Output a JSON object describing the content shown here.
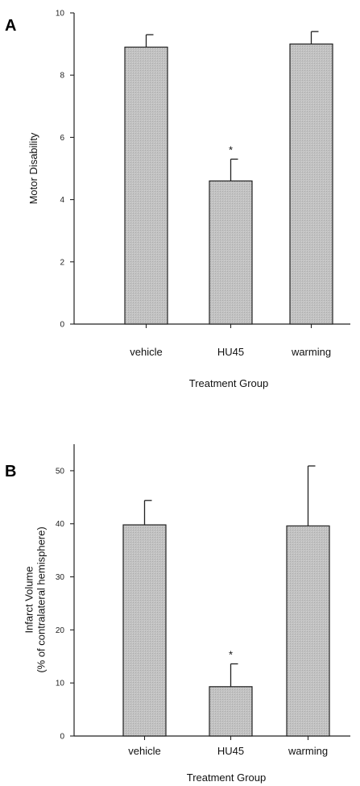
{
  "chart_data": [
    {
      "panel": "A",
      "type": "bar",
      "categories": [
        "vehicle",
        "HU45",
        "warming"
      ],
      "values": [
        8.9,
        4.6,
        9.0
      ],
      "errors": [
        0.4,
        0.7,
        0.4
      ],
      "significance": [
        "",
        "*",
        ""
      ],
      "xlabel": "Treatment Group",
      "ylabel": [
        "Motor Disability"
      ],
      "ylim": [
        0,
        10
      ],
      "yticks": [
        0,
        2,
        4,
        6,
        8,
        10
      ],
      "bar_color": "#bdbdbd"
    },
    {
      "panel": "B",
      "type": "bar",
      "categories": [
        "vehicle",
        "HU45",
        "warming"
      ],
      "values": [
        39.8,
        9.3,
        39.6
      ],
      "errors": [
        4.6,
        4.3,
        11.3
      ],
      "significance": [
        "",
        "*",
        ""
      ],
      "xlabel": "Treatment Group",
      "ylabel": [
        "Infarct Volume",
        "(% of contralateral hemisphere)"
      ],
      "ylim": [
        0,
        55
      ],
      "yticks": [
        0,
        10,
        20,
        30,
        40,
        50
      ],
      "bar_color": "#bdbdbd"
    }
  ]
}
